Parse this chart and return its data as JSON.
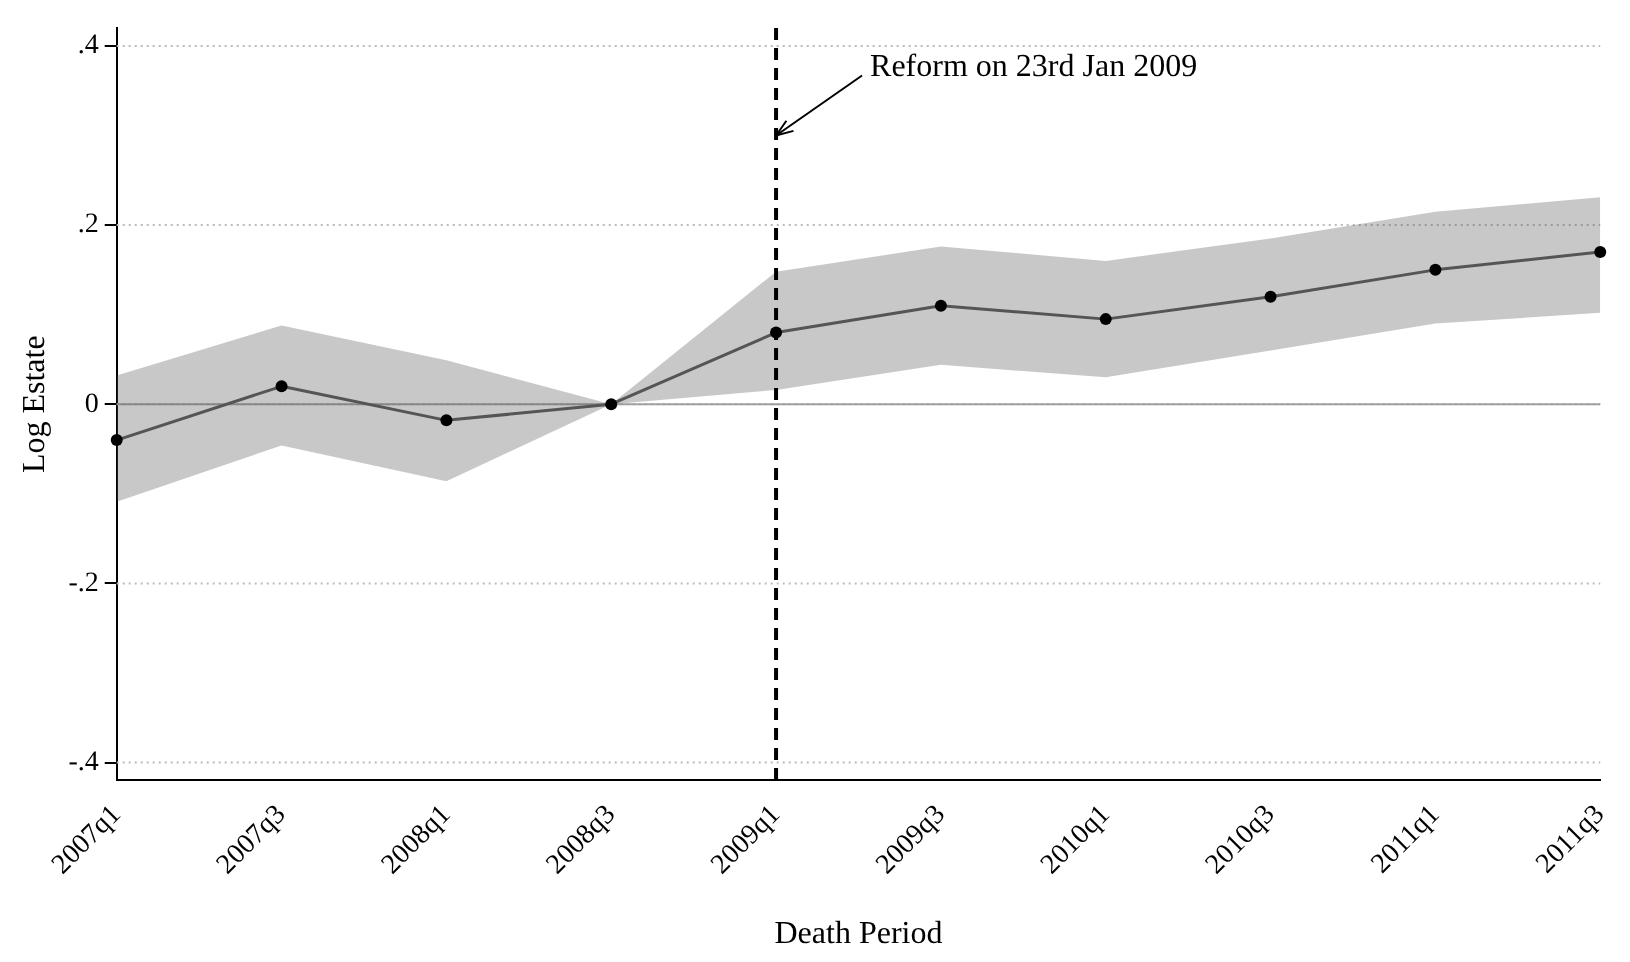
{
  "chart_data": {
    "type": "line",
    "xlabel": "Death Period",
    "ylabel": "Log Estate",
    "categories": [
      "2007q1",
      "2007q3",
      "2008q1",
      "2008q3",
      "2009q1",
      "2009q3",
      "2010q1",
      "2010q3",
      "2011q1",
      "2011q3"
    ],
    "series": [
      {
        "color": "#555555",
        "values": [
          -0.04,
          0.02,
          -0.018,
          0,
          0.08,
          0.11,
          0.095,
          0.12,
          0.15,
          0.17
        ],
        "lower": [
          -0.109,
          -0.046,
          -0.086,
          0,
          0.016,
          0.044,
          0.03,
          0.06,
          0.09,
          0.102
        ],
        "upper": [
          0.032,
          0.088,
          0.049,
          0,
          0.148,
          0.176,
          0.16,
          0.185,
          0.215,
          0.231
        ]
      }
    ],
    "ylim": [
      -0.42,
      0.42
    ],
    "yticks": [
      {
        "value": -0.4,
        "label": "-.4"
      },
      {
        "value": -0.2,
        "label": "-.2"
      },
      {
        "value": 0,
        "label": "0"
      },
      {
        "value": 0.2,
        "label": ".2"
      },
      {
        "value": 0.4,
        "label": ".4"
      }
    ],
    "grid": "y",
    "marker": "circle",
    "line_style": "solid",
    "legend": false,
    "ref_lines": [
      {
        "axis": "x",
        "value": "2009q1",
        "color": "#000000",
        "line_style": "dashed"
      },
      {
        "axis": "y",
        "value": 0,
        "color": "#a0a0a0",
        "line_style": "solid"
      }
    ],
    "annotations": [
      {
        "text": "Reform on 23rd Jan 2009",
        "x": "2009q1",
        "y": 0.3
      }
    ]
  }
}
